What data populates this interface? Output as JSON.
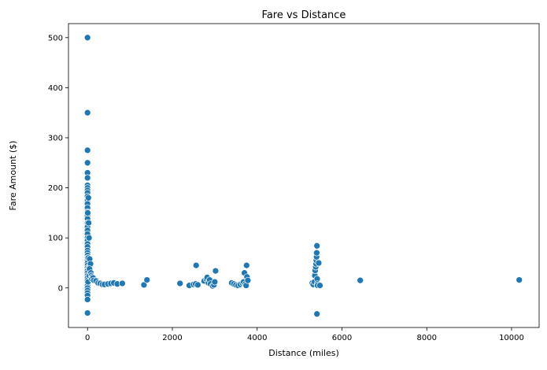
{
  "chart_data": {
    "type": "scatter",
    "title": "Fare vs Distance",
    "xlabel": "Distance (miles)",
    "ylabel": "Fare Amount ($)",
    "xlim": [
      -450,
      10650
    ],
    "ylim": [
      -79,
      528
    ],
    "xticks": [
      0,
      2000,
      4000,
      6000,
      8000,
      10000
    ],
    "yticks": [
      0,
      100,
      200,
      300,
      400,
      500
    ],
    "grid": false,
    "legend": "none",
    "marker_color": "#1f77b4",
    "marker_edge_color": "#ffffff",
    "points": [
      [
        0,
        500
      ],
      [
        0,
        350
      ],
      [
        0,
        275
      ],
      [
        0,
        250
      ],
      [
        0,
        230
      ],
      [
        0,
        220
      ],
      [
        0,
        205
      ],
      [
        0,
        200
      ],
      [
        0,
        195
      ],
      [
        0,
        190
      ],
      [
        0,
        183
      ],
      [
        0,
        175
      ],
      [
        0,
        168
      ],
      [
        0,
        160
      ],
      [
        0,
        152
      ],
      [
        0,
        145
      ],
      [
        0,
        138
      ],
      [
        0,
        130
      ],
      [
        0,
        122
      ],
      [
        0,
        115
      ],
      [
        0,
        108
      ],
      [
        0,
        100
      ],
      [
        0,
        95
      ],
      [
        0,
        88
      ],
      [
        0,
        82
      ],
      [
        0,
        75
      ],
      [
        0,
        70
      ],
      [
        0,
        65
      ],
      [
        0,
        60
      ],
      [
        0,
        55
      ],
      [
        0,
        50
      ],
      [
        0,
        45
      ],
      [
        0,
        40
      ],
      [
        0,
        35
      ],
      [
        0,
        30
      ],
      [
        0,
        25
      ],
      [
        0,
        20
      ],
      [
        0,
        15
      ],
      [
        0,
        10
      ],
      [
        0,
        5
      ],
      [
        0,
        0
      ],
      [
        0,
        -5
      ],
      [
        0,
        -10
      ],
      [
        0,
        -15
      ],
      [
        0,
        -23
      ],
      [
        0,
        -50
      ],
      [
        20,
        180
      ],
      [
        25,
        130
      ],
      [
        15,
        60
      ],
      [
        30,
        40
      ],
      [
        40,
        25
      ],
      [
        10,
        12
      ],
      [
        5,
        150
      ],
      [
        35,
        100
      ],
      [
        50,
        58
      ],
      [
        60,
        45
      ],
      [
        70,
        48
      ],
      [
        45,
        38
      ],
      [
        80,
        30
      ],
      [
        90,
        25
      ],
      [
        110,
        22
      ],
      [
        100,
        18
      ],
      [
        130,
        20
      ],
      [
        150,
        15
      ],
      [
        200,
        14
      ],
      [
        250,
        10
      ],
      [
        300,
        9
      ],
      [
        350,
        7
      ],
      [
        400,
        7
      ],
      [
        480,
        8
      ],
      [
        550,
        9
      ],
      [
        620,
        10
      ],
      [
        700,
        8
      ],
      [
        820,
        9
      ],
      [
        1330,
        6
      ],
      [
        1400,
        16
      ],
      [
        2180,
        9
      ],
      [
        2400,
        5
      ],
      [
        2500,
        7
      ],
      [
        2550,
        8
      ],
      [
        2560,
        45
      ],
      [
        2600,
        6
      ],
      [
        2750,
        14
      ],
      [
        2800,
        18
      ],
      [
        2820,
        21
      ],
      [
        2850,
        10
      ],
      [
        2880,
        16
      ],
      [
        2900,
        8
      ],
      [
        2950,
        4
      ],
      [
        2980,
        6
      ],
      [
        3000,
        12
      ],
      [
        3020,
        34
      ],
      [
        3400,
        10
      ],
      [
        3450,
        8
      ],
      [
        3500,
        6
      ],
      [
        3550,
        5
      ],
      [
        3600,
        7
      ],
      [
        3650,
        10
      ],
      [
        3680,
        12
      ],
      [
        3700,
        30
      ],
      [
        3720,
        8
      ],
      [
        3740,
        5
      ],
      [
        3750,
        45
      ],
      [
        3760,
        22
      ],
      [
        3780,
        15
      ],
      [
        5300,
        10
      ],
      [
        5320,
        7
      ],
      [
        5350,
        12
      ],
      [
        5360,
        25
      ],
      [
        5370,
        35
      ],
      [
        5380,
        42
      ],
      [
        5390,
        48
      ],
      [
        5395,
        55
      ],
      [
        5400,
        62
      ],
      [
        5405,
        70
      ],
      [
        5410,
        84
      ],
      [
        5415,
        18
      ],
      [
        5420,
        8
      ],
      [
        5425,
        5
      ],
      [
        5410,
        -52
      ],
      [
        5480,
        5
      ],
      [
        5450,
        50
      ],
      [
        6430,
        15
      ],
      [
        10180,
        16
      ]
    ]
  }
}
